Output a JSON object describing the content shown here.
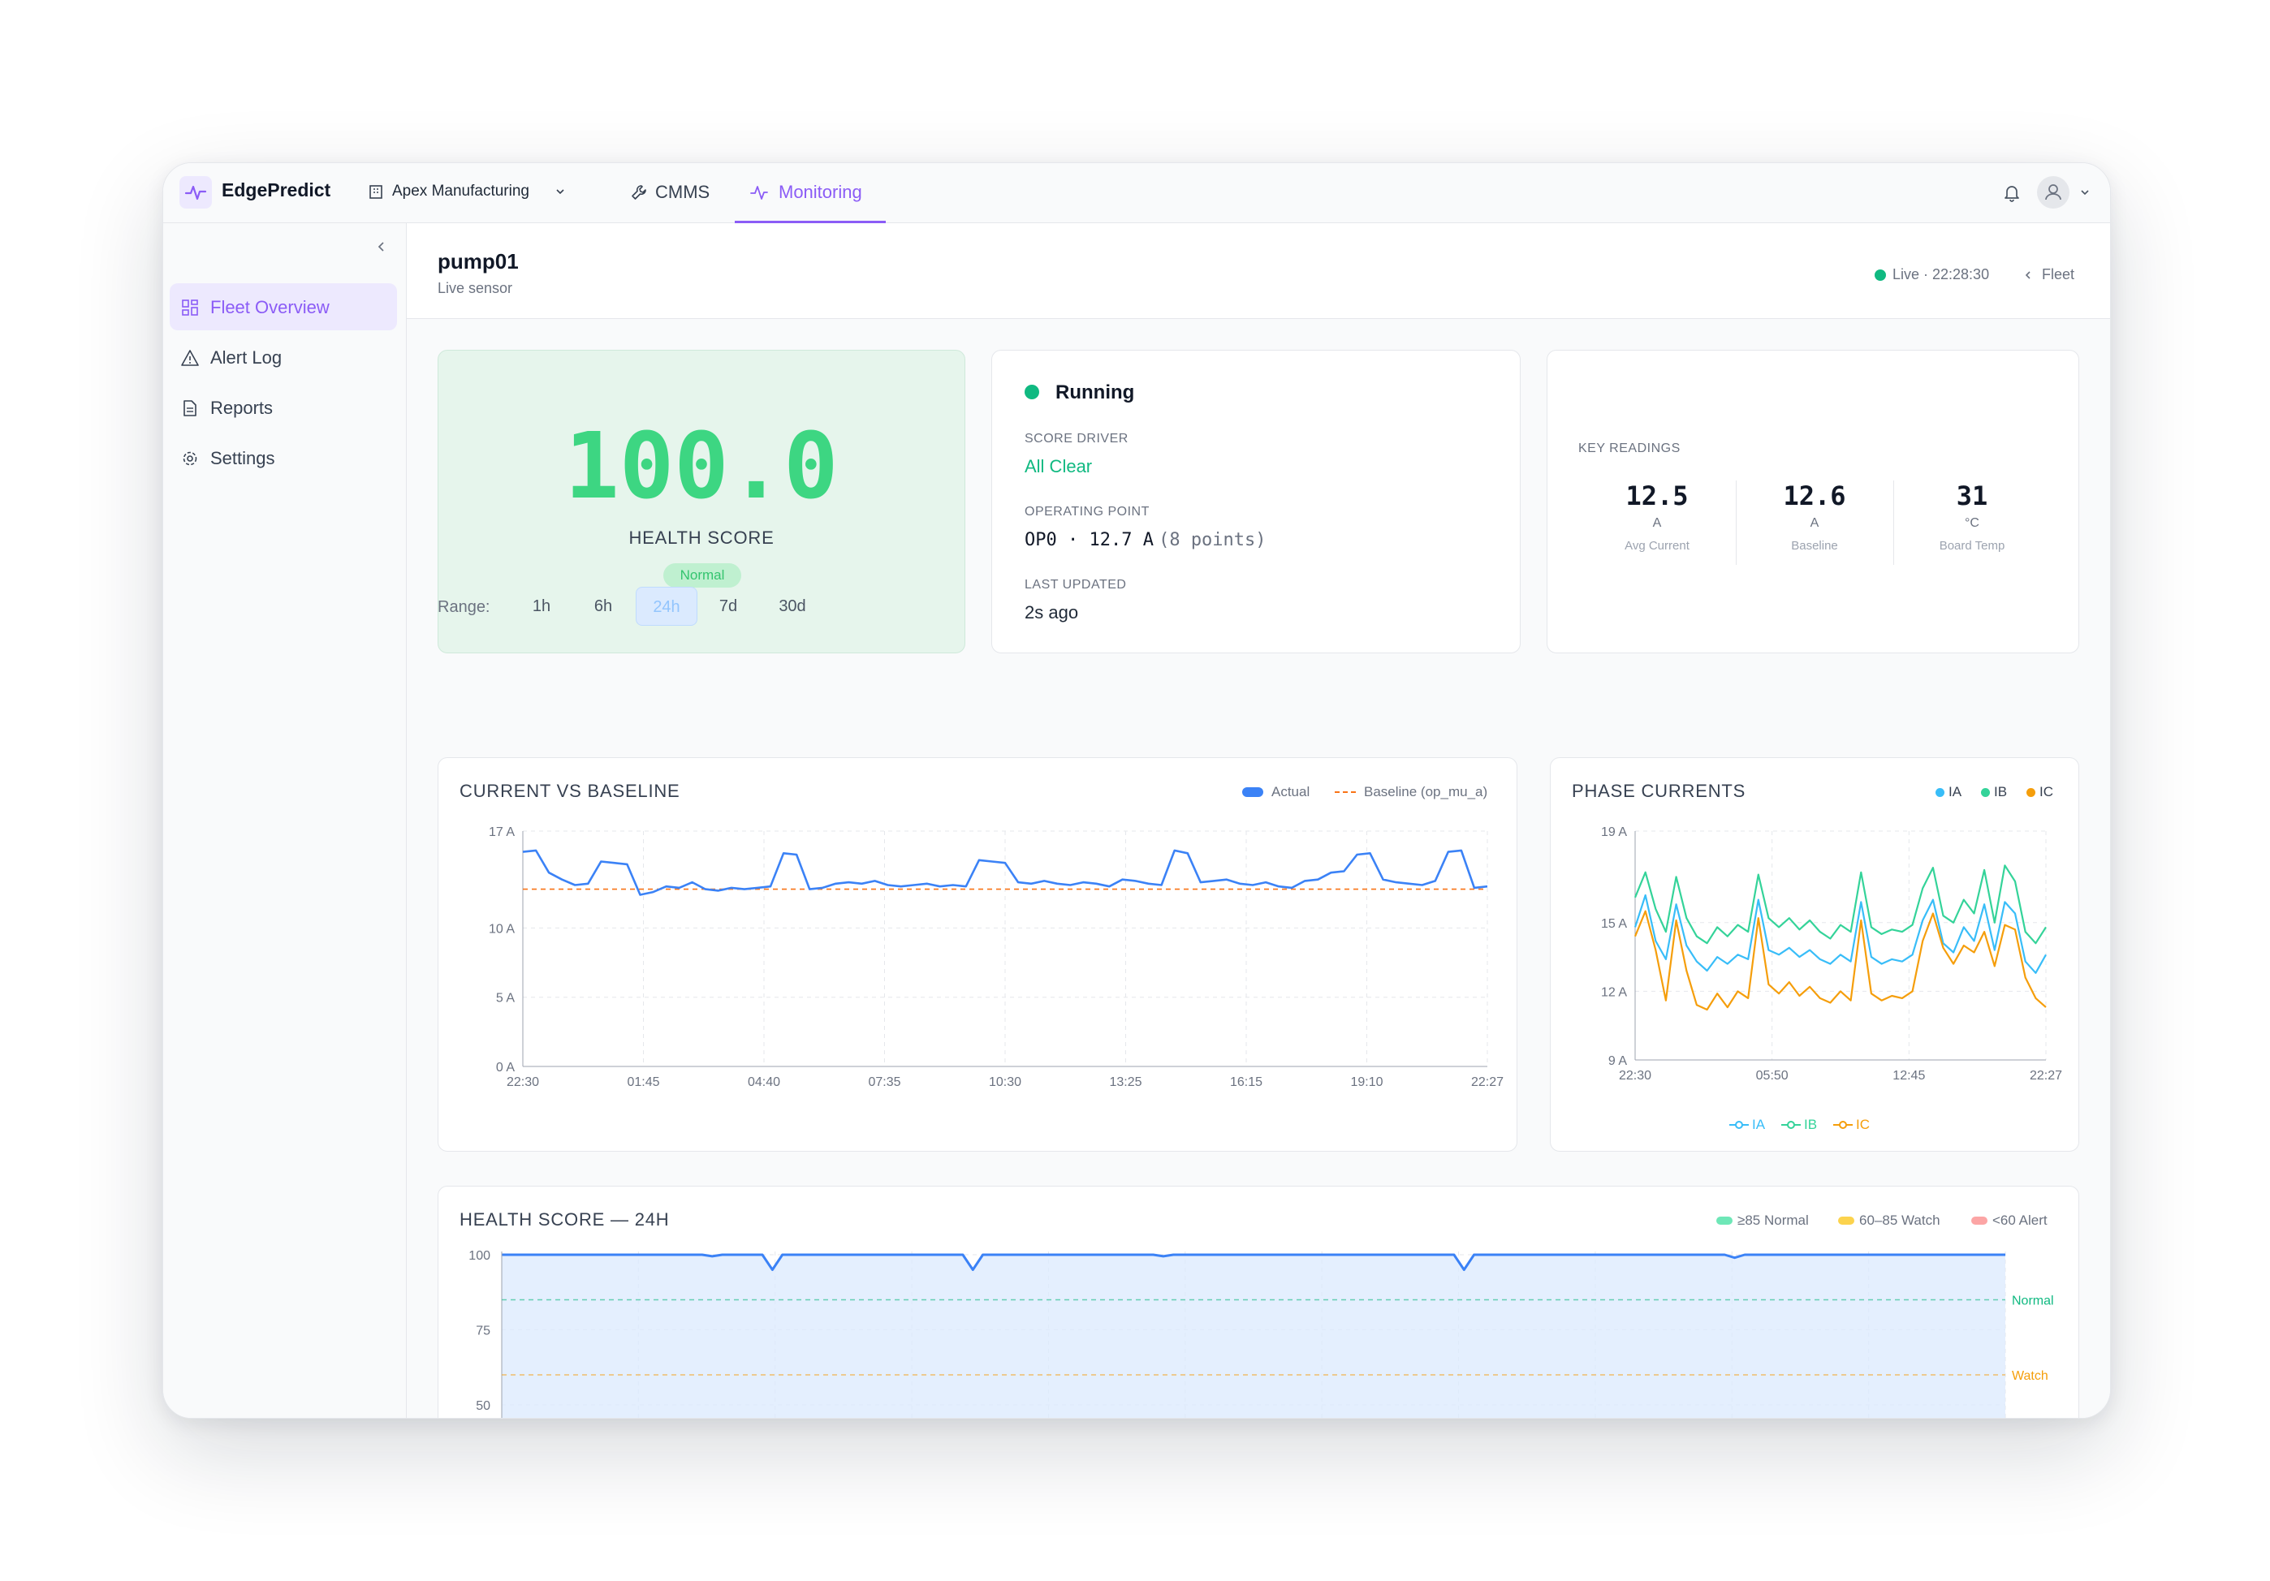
{
  "app": {
    "title": "EdgePredict",
    "org": "Apex Manufacturing"
  },
  "nav": {
    "tabs": [
      {
        "label": "CMMS"
      },
      {
        "label": "Monitoring",
        "active": true
      }
    ]
  },
  "sidebar": {
    "items": [
      {
        "label": "Fleet Overview",
        "icon": "grid-icon",
        "active": true
      },
      {
        "label": "Alert Log",
        "icon": "warning-icon"
      },
      {
        "label": "Reports",
        "icon": "document-icon"
      },
      {
        "label": "Settings",
        "icon": "gear-icon"
      }
    ]
  },
  "header": {
    "device": "pump01",
    "subtitle": "Live sensor",
    "live": "Live · 22:28:30",
    "back": "Fleet"
  },
  "health": {
    "score": "100.0",
    "label": "HEALTH SCORE",
    "badge": "Normal"
  },
  "status": {
    "state": "Running",
    "driver_label": "SCORE DRIVER",
    "driver_value": "All Clear",
    "op_label": "OPERATING POINT",
    "op_value": "OP0 · 12.7 A",
    "op_points": "(8 points)",
    "updated_label": "LAST UPDATED",
    "updated_value": "2s ago"
  },
  "readings": {
    "label": "KEY READINGS",
    "items": [
      {
        "value": "12.5",
        "unit": "A",
        "name": "Avg Current"
      },
      {
        "value": "12.6",
        "unit": "A",
        "name": "Baseline"
      },
      {
        "value": "31",
        "unit": "°C",
        "name": "Board Temp"
      }
    ]
  },
  "range": {
    "label": "Range:",
    "options": [
      "1h",
      "6h",
      "24h",
      "7d",
      "30d"
    ],
    "selected": "24h"
  },
  "colors": {
    "accent": "#8b5cf6",
    "actual": "#3b82f6",
    "baseline": "#f97316",
    "ia": "#38bdf8",
    "ib": "#34d399",
    "ic": "#f59e0b",
    "normal": "#10b981",
    "watch": "#f59e0b",
    "alert": "#f87171"
  },
  "chart_data": [
    {
      "type": "line",
      "title": "CURRENT VS BASELINE",
      "ylim": [
        0,
        17
      ],
      "yticks": [
        "0 A",
        "5 A",
        "10 A",
        "17 A"
      ],
      "xticks": [
        "22:30",
        "01:45",
        "04:40",
        "07:35",
        "10:30",
        "13:25",
        "16:15",
        "19:10",
        "22:27"
      ],
      "legend": [
        "Actual",
        "Baseline (op_mu_a)"
      ],
      "series": [
        {
          "name": "Actual",
          "values": [
            15.5,
            15.6,
            14.0,
            13.5,
            13.1,
            13.2,
            14.8,
            14.7,
            14.6,
            12.4,
            12.6,
            13.0,
            12.9,
            13.3,
            12.8,
            12.7,
            12.9,
            12.8,
            12.9,
            13.0,
            15.4,
            15.3,
            12.8,
            12.9,
            13.2,
            13.3,
            13.2,
            13.4,
            13.1,
            13.0,
            13.1,
            13.2,
            13.0,
            13.1,
            13.0,
            14.9,
            14.8,
            14.7,
            13.3,
            13.2,
            13.4,
            13.2,
            13.1,
            13.3,
            13.2,
            13.0,
            13.5,
            13.4,
            13.2,
            13.1,
            15.6,
            15.4,
            13.3,
            13.4,
            13.5,
            13.2,
            13.1,
            13.3,
            13.0,
            12.9,
            13.4,
            13.5,
            14.0,
            14.1,
            15.3,
            15.4,
            13.5,
            13.3,
            13.2,
            13.1,
            13.4,
            15.5,
            15.6,
            12.9,
            13.0
          ]
        },
        {
          "name": "Baseline (op_mu_a)",
          "values": [
            12.8,
            12.8,
            12.8,
            12.8,
            12.8,
            12.8,
            12.8,
            12.8,
            12.8,
            12.8,
            12.8,
            12.8,
            12.8,
            12.8,
            12.8,
            12.8,
            12.8,
            12.8,
            12.8,
            12.8,
            12.8,
            12.8,
            12.8,
            12.8,
            12.8,
            12.8,
            12.8,
            12.8,
            12.8,
            12.8,
            12.8,
            12.8,
            12.8,
            12.8,
            12.8,
            12.8,
            12.8,
            12.8,
            12.8,
            12.8,
            12.8,
            12.8,
            12.8,
            12.8,
            12.8,
            12.8,
            12.8,
            12.8,
            12.8,
            12.8,
            12.8,
            12.8,
            12.8,
            12.8,
            12.8,
            12.8,
            12.8,
            12.8,
            12.8,
            12.8,
            12.8,
            12.8,
            12.8,
            12.8,
            12.8,
            12.8,
            12.8,
            12.8,
            12.8,
            12.8,
            12.8,
            12.8,
            12.8,
            12.8,
            12.8
          ]
        }
      ]
    },
    {
      "type": "line",
      "title": "PHASE CURRENTS",
      "ylim": [
        9,
        19
      ],
      "yticks": [
        "9 A",
        "12 A",
        "15 A",
        "19 A"
      ],
      "xticks": [
        "22:30",
        "05:50",
        "12:45",
        "22:27"
      ],
      "legend": [
        "IA",
        "IB",
        "IC"
      ],
      "series": [
        {
          "name": "IA",
          "values": [
            14.8,
            16.2,
            14.2,
            13.4,
            15.8,
            14.0,
            13.3,
            12.9,
            13.5,
            13.2,
            13.6,
            13.4,
            16.0,
            13.8,
            13.6,
            13.9,
            13.5,
            13.8,
            13.4,
            13.2,
            13.6,
            13.3,
            15.9,
            13.5,
            13.2,
            13.4,
            13.3,
            13.6,
            15.1,
            16.0,
            14.1,
            13.7,
            14.8,
            14.2,
            15.8,
            13.8,
            15.9,
            15.4,
            13.3,
            12.8,
            13.6
          ]
        },
        {
          "name": "IB",
          "values": [
            16.1,
            17.2,
            15.6,
            14.6,
            17.0,
            15.2,
            14.4,
            14.1,
            14.8,
            14.4,
            14.9,
            14.6,
            17.1,
            15.2,
            14.8,
            15.2,
            14.7,
            15.1,
            14.6,
            14.3,
            14.9,
            14.6,
            17.2,
            14.8,
            14.5,
            14.7,
            14.6,
            14.9,
            16.5,
            17.4,
            15.3,
            15.0,
            16.0,
            15.4,
            17.3,
            15.0,
            17.5,
            16.8,
            14.6,
            14.1,
            14.8
          ]
        },
        {
          "name": "IC",
          "values": [
            14.4,
            15.5,
            13.8,
            11.6,
            15.1,
            12.9,
            11.4,
            11.2,
            11.9,
            11.3,
            12.0,
            11.7,
            15.2,
            12.3,
            11.9,
            12.4,
            11.8,
            12.2,
            11.7,
            11.5,
            12.0,
            11.6,
            15.1,
            11.9,
            11.6,
            11.8,
            11.7,
            12.0,
            14.2,
            15.4,
            13.9,
            13.2,
            14.0,
            13.7,
            14.6,
            13.1,
            14.9,
            14.7,
            12.6,
            11.7,
            11.3
          ]
        }
      ]
    },
    {
      "type": "area",
      "title": "HEALTH SCORE — 24H",
      "ylim": [
        0,
        100
      ],
      "yticks": [
        "50",
        "75",
        "100"
      ],
      "legend": [
        "≥85 Normal",
        "60–85 Watch",
        "<60 Alert"
      ],
      "thresholds": [
        {
          "label": "Normal",
          "value": 85
        },
        {
          "label": "Watch",
          "value": 60
        }
      ],
      "series": [
        {
          "name": "Health",
          "values": [
            100,
            100,
            100,
            100,
            100,
            100,
            100,
            100,
            100,
            100,
            100,
            100,
            100,
            100,
            100,
            100,
            100,
            100,
            100,
            100,
            100,
            99.5,
            100,
            100,
            100,
            100,
            100,
            95,
            100,
            100,
            100,
            100,
            100,
            100,
            100,
            100,
            100,
            100,
            100,
            100,
            100,
            100,
            100,
            100,
            100,
            100,
            100,
            95,
            100,
            100,
            100,
            100,
            100,
            100,
            100,
            100,
            100,
            100,
            100,
            100,
            100,
            100,
            100,
            100,
            100,
            100,
            99.5,
            100,
            100,
            100,
            100,
            100,
            100,
            100,
            100,
            100,
            100,
            100,
            100,
            100,
            100,
            100,
            100,
            100,
            100,
            100,
            100,
            100,
            100,
            100,
            100,
            100,
            100,
            100,
            100,
            100,
            95,
            100,
            100,
            100,
            100,
            100,
            100,
            100,
            100,
            100,
            100,
            100,
            100,
            100,
            100,
            100,
            100,
            100,
            100,
            100,
            100,
            100,
            100,
            100,
            100,
            100,
            100,
            99,
            100,
            100,
            100,
            100,
            100,
            100,
            100,
            100,
            100,
            100,
            100,
            100,
            100,
            100,
            100,
            100,
            100,
            100,
            100,
            100,
            100,
            100,
            100,
            100,
            100,
            100,
            100
          ]
        }
      ]
    }
  ]
}
